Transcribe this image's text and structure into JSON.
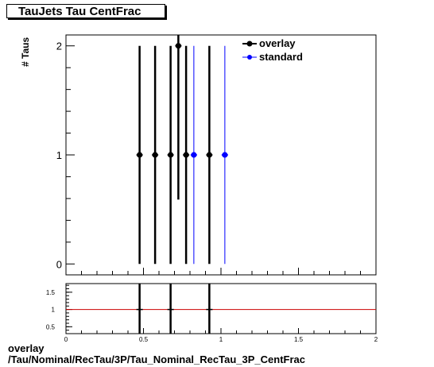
{
  "title": "TauJets Tau CentFrac",
  "footer": {
    "line1": "overlay",
    "line2": "/Tau/Nominal/RecTau/3P/Tau_Nominal_RecTau_3P_CentFrac"
  },
  "colors": {
    "overlay": "#000000",
    "standard": "#0000ff",
    "ratio_line": "#cc0000"
  },
  "chart_data": [
    {
      "type": "scatter",
      "ylabel": "# Taus",
      "xlim": [
        0,
        2
      ],
      "ylim": [
        -0.1,
        2.1
      ],
      "y_ticks": [
        "0",
        "1",
        "2"
      ],
      "legend": {
        "placement": "top-right",
        "entries": [
          "overlay",
          "standard"
        ]
      },
      "series": [
        {
          "name": "overlay",
          "x": [
            0.475,
            0.575,
            0.675,
            0.725,
            0.775,
            0.925
          ],
          "y": [
            1,
            1,
            1,
            2,
            1,
            1
          ],
          "yerr": [
            1,
            1,
            1,
            1.41,
            1,
            1
          ]
        },
        {
          "name": "standard",
          "x": [
            0.825,
            1.025
          ],
          "y": [
            1,
            1
          ],
          "yerr": [
            1,
            1
          ]
        }
      ]
    },
    {
      "type": "scatter",
      "xlim": [
        0,
        2
      ],
      "ylim": [
        0.3,
        1.75
      ],
      "x_ticks": [
        "0",
        "0.5",
        "1",
        "1.5",
        "2"
      ],
      "y_ticks": [
        "0.5",
        "1",
        "1.5"
      ],
      "reference_line": 1,
      "series": [
        {
          "name": "ratio",
          "x": [
            0.475,
            0.675,
            0.925
          ],
          "y": [
            1,
            1,
            1
          ]
        }
      ]
    }
  ]
}
